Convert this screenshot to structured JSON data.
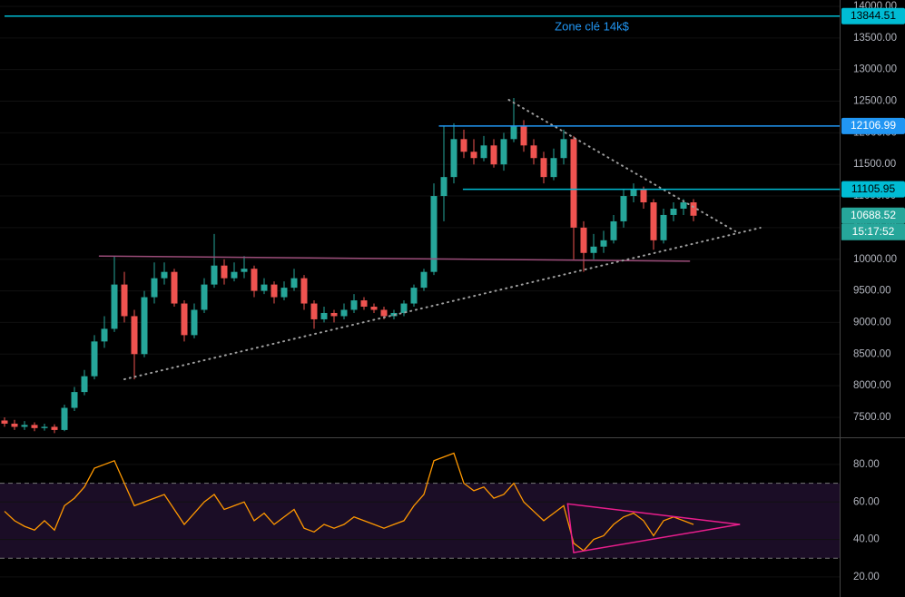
{
  "chart_data": [
    {
      "type": "candlestick",
      "annotation": "Zone clé 14k$",
      "countdown": "15:17:52",
      "up_color": "#26a69a",
      "down_color": "#ef5350",
      "ylim": [
        7184,
        14100
      ],
      "yticks": [
        {
          "value": 7500,
          "label": "7500.00"
        },
        {
          "value": 8000,
          "label": "8000.00"
        },
        {
          "value": 8500,
          "label": "8500.00"
        },
        {
          "value": 9000,
          "label": "9000.00"
        },
        {
          "value": 9500,
          "label": "9500.00"
        },
        {
          "value": 10000,
          "label": "10000.00"
        },
        {
          "value": 10500,
          "label": "10500.00"
        },
        {
          "value": 11000,
          "label": "11000.00"
        },
        {
          "value": 11500,
          "label": "11500.00"
        },
        {
          "value": 12000,
          "label": "12000.00"
        },
        {
          "value": 12500,
          "label": "12500.00"
        },
        {
          "value": 13000,
          "label": "13000.00"
        },
        {
          "value": 13500,
          "label": "13500.00"
        },
        {
          "value": 14000,
          "label": "14000.00"
        }
      ],
      "open": [
        7450,
        7400,
        7350,
        7380,
        7330,
        7350,
        7300,
        7650,
        7900,
        8150,
        8700,
        8900,
        9600,
        9100,
        8500,
        9400,
        9700,
        9800,
        9300,
        8800,
        9200,
        9600,
        9900,
        9700,
        9800,
        9850,
        9500,
        9600,
        9400,
        9550,
        9700,
        9300,
        9050,
        9150,
        9100,
        9200,
        9350,
        9250,
        9200,
        9100,
        9150,
        9300,
        9550,
        9800,
        11000,
        11300,
        11900,
        11700,
        11600,
        11800,
        11500,
        11900,
        12100,
        11800,
        11600,
        11300,
        11600,
        11900,
        10500,
        10100,
        10200,
        10300,
        10600,
        11000,
        11100,
        10900,
        10300,
        10700,
        10800,
        10900
      ],
      "high": [
        7500,
        7460,
        7440,
        7420,
        7400,
        7390,
        7700,
        7980,
        8250,
        8800,
        9100,
        10050,
        9800,
        9200,
        9500,
        9950,
        9950,
        9850,
        9350,
        9300,
        9700,
        10400,
        10000,
        9950,
        10050,
        9900,
        9700,
        9650,
        9650,
        9850,
        9750,
        9350,
        9250,
        9200,
        9300,
        9450,
        9400,
        9300,
        9250,
        9200,
        9350,
        9600,
        9850,
        11200,
        12100,
        12150,
        12050,
        11900,
        11950,
        11900,
        12000,
        12550,
        12200,
        11900,
        11700,
        11750,
        12050,
        11950,
        10600,
        10400,
        10450,
        10700,
        11100,
        11200,
        11150,
        10950,
        10800,
        10900,
        10950,
        10950
      ],
      "low": [
        7350,
        7300,
        7300,
        7280,
        7290,
        7250,
        7280,
        7600,
        7850,
        8100,
        8600,
        8850,
        9000,
        8100,
        8450,
        9300,
        9600,
        9250,
        8700,
        8750,
        9150,
        9550,
        9600,
        9650,
        9700,
        9400,
        9450,
        9300,
        9350,
        9500,
        9200,
        8900,
        9000,
        9000,
        9050,
        9150,
        9200,
        9150,
        9050,
        9050,
        9100,
        9250,
        9500,
        9750,
        10600,
        11200,
        11600,
        11500,
        11550,
        11450,
        11400,
        11850,
        11700,
        11500,
        11200,
        11250,
        11500,
        10000,
        9800,
        10000,
        10100,
        10250,
        10500,
        10900,
        10800,
        10150,
        10250,
        10600,
        10700,
        10600
      ],
      "close": [
        7400,
        7350,
        7380,
        7330,
        7350,
        7300,
        7650,
        7900,
        8150,
        8700,
        8900,
        9600,
        9100,
        8500,
        9400,
        9700,
        9800,
        9300,
        8800,
        9200,
        9600,
        9900,
        9700,
        9800,
        9850,
        9500,
        9600,
        9400,
        9550,
        9700,
        9300,
        9050,
        9150,
        9100,
        9200,
        9350,
        9250,
        9200,
        9100,
        9150,
        9300,
        9550,
        9800,
        11000,
        11300,
        11900,
        11700,
        11600,
        11800,
        11500,
        11900,
        12100,
        11800,
        11600,
        11300,
        11600,
        11900,
        10500,
        10100,
        10200,
        10300,
        10600,
        11000,
        11100,
        10900,
        10300,
        10700,
        10800,
        10900,
        10688.52
      ],
      "levels": [
        {
          "value": 13844.51,
          "color": "#00bcd4",
          "from": 0
        },
        {
          "value": 12106.99,
          "color": "#2196f3",
          "from": 43.5
        },
        {
          "value": 11105.95,
          "color": "#00bcd4",
          "from": 45.9
        },
        {
          "value": 10688.52,
          "color": "#26a69a"
        }
      ],
      "trendlines": [
        {
          "from": [
            9.5,
            10050
          ],
          "to": [
            68.6,
            9970
          ],
          "color": "#9c4d7a",
          "style": "solid"
        },
        {
          "from": [
            12,
            8102
          ],
          "to": [
            75.7,
            10498
          ],
          "color": "#9e9e9e",
          "style": "dotted"
        },
        {
          "from": [
            50.5,
            12521
          ],
          "to": [
            73.2,
            10441
          ],
          "color": "#9e9e9e",
          "style": "dotted"
        }
      ]
    },
    {
      "type": "line",
      "color": "#ff9800",
      "ylim": [
        9.3,
        94
      ],
      "yticks": [
        {
          "value": 20,
          "label": "20.00"
        },
        {
          "value": 40,
          "label": "40.00"
        },
        {
          "value": 60,
          "label": "60.00"
        },
        {
          "value": 80,
          "label": "80.00"
        }
      ],
      "band": [
        30,
        70
      ],
      "values": [
        55,
        50,
        47,
        45,
        50,
        45,
        58,
        62,
        68,
        78,
        80,
        82,
        70,
        58,
        60,
        62,
        64,
        56,
        48,
        54,
        60,
        64,
        56,
        58,
        60,
        50,
        54,
        48,
        52,
        56,
        46,
        44,
        48,
        46,
        48,
        52,
        50,
        48,
        46,
        48,
        50,
        58,
        64,
        82,
        84,
        86,
        70,
        66,
        68,
        62,
        64,
        70,
        60,
        55,
        50,
        54,
        58,
        38,
        34,
        40,
        42,
        48,
        52,
        54,
        50,
        42,
        50,
        52,
        50,
        48
      ],
      "trendlines": [
        {
          "from": [
            56.4,
            59
          ],
          "to": [
            73.6,
            48
          ],
          "color": "#e91e8c",
          "style": "solid"
        },
        {
          "from": [
            57,
            33
          ],
          "to": [
            73.6,
            48
          ],
          "color": "#e91e8c",
          "style": "solid"
        },
        {
          "from": [
            56.4,
            59
          ],
          "to": [
            57,
            33
          ],
          "color": "#e91e8c",
          "style": "solid"
        }
      ]
    }
  ]
}
